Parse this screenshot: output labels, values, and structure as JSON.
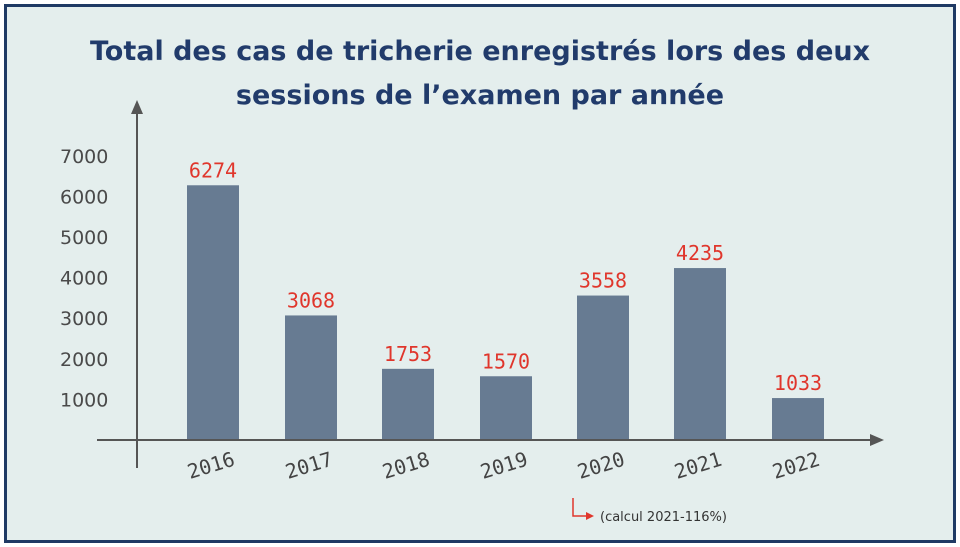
{
  "chart_data": {
    "type": "bar",
    "title_line1": "Total des cas de tricherie enregistrés lors des deux",
    "title_line2": "sessions de l’examen par année",
    "categories": [
      "2016",
      "2017",
      "2018",
      "2019",
      "2020",
      "2021",
      "2022"
    ],
    "values": [
      6274,
      3068,
      1753,
      1570,
      3558,
      4235,
      1033
    ],
    "data_labels": [
      "6274",
      "3068",
      "1753",
      "1570",
      "3558",
      "4235",
      "1033"
    ],
    "yticks": [
      1000,
      2000,
      3000,
      4000,
      5000,
      6000,
      7000
    ],
    "ylim": [
      0,
      7000
    ],
    "annotation": "(calcul 2021-116%)",
    "colors": {
      "bar": "#677b92",
      "data_label": "#e0362c",
      "axis": "#555555",
      "title": "#213b6b",
      "frame": "#1f3a64",
      "background": "#e4eeed",
      "annotation_arrow": "#e0362c"
    }
  }
}
